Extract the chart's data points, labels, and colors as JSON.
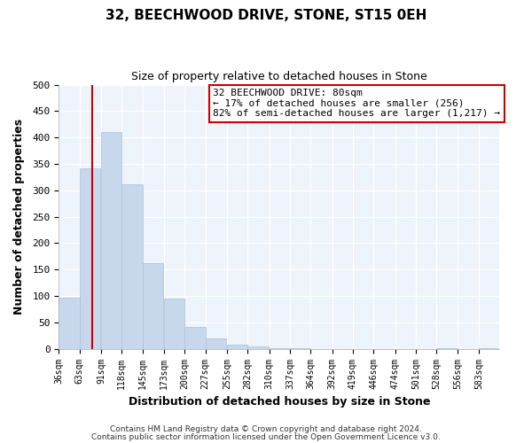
{
  "title": "32, BEECHWOOD DRIVE, STONE, ST15 0EH",
  "subtitle": "Size of property relative to detached houses in Stone",
  "xlabel": "Distribution of detached houses by size in Stone",
  "ylabel": "Number of detached properties",
  "bar_color": "#c8d8ec",
  "bar_edge_color": "#a8c0dc",
  "grid_color": "#c8d8ec",
  "vline_color": "#cc0000",
  "vline_x": 80,
  "categories": [
    "36sqm",
    "63sqm",
    "91sqm",
    "118sqm",
    "145sqm",
    "173sqm",
    "200sqm",
    "227sqm",
    "255sqm",
    "282sqm",
    "310sqm",
    "337sqm",
    "364sqm",
    "392sqm",
    "419sqm",
    "446sqm",
    "474sqm",
    "501sqm",
    "528sqm",
    "556sqm",
    "583sqm"
  ],
  "bin_edges": [
    36,
    63,
    91,
    118,
    145,
    173,
    200,
    227,
    255,
    282,
    310,
    337,
    364,
    392,
    419,
    446,
    474,
    501,
    528,
    556,
    583
  ],
  "values": [
    97,
    342,
    411,
    311,
    163,
    95,
    42,
    20,
    8,
    5,
    2,
    1,
    0,
    0,
    0,
    0,
    0,
    0,
    2,
    0,
    2
  ],
  "ylim": [
    0,
    500
  ],
  "yticks": [
    0,
    50,
    100,
    150,
    200,
    250,
    300,
    350,
    400,
    450,
    500
  ],
  "annotation_title": "32 BEECHWOOD DRIVE: 80sqm",
  "annotation_line1": "← 17% of detached houses are smaller (256)",
  "annotation_line2": "82% of semi-detached houses are larger (1,217) →",
  "annotation_box_color": "#ffffff",
  "annotation_box_edge": "#cc0000",
  "footer1": "Contains HM Land Registry data © Crown copyright and database right 2024.",
  "footer2": "Contains public sector information licensed under the Open Government Licence v3.0.",
  "bg_color": "#eef4fb"
}
